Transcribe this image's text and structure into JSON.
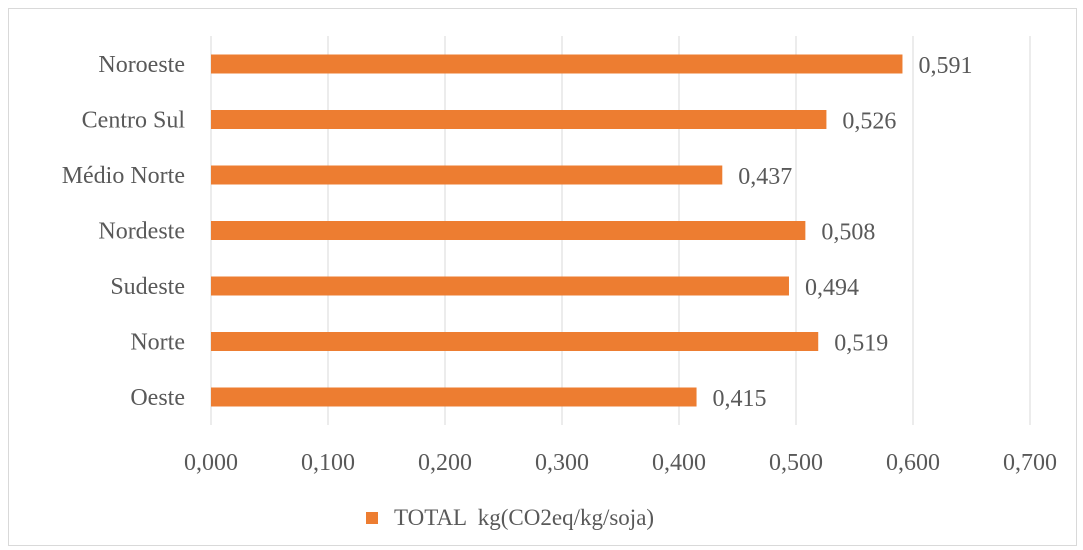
{
  "chart_data": {
    "type": "bar",
    "orientation": "horizontal",
    "categories": [
      "Noroeste",
      "Centro Sul",
      "Médio Norte",
      "Nordeste",
      "Sudeste",
      "Norte",
      "Oeste"
    ],
    "series": [
      {
        "name": "TOTAL  kg(CO2eq/kg/soja)",
        "values": [
          0.591,
          0.526,
          0.437,
          0.508,
          0.494,
          0.519,
          0.415
        ],
        "value_labels": [
          "0,591",
          "0,526",
          "0,437",
          "0,508",
          "0,494",
          "0,519",
          "0,415"
        ]
      }
    ],
    "xlim": [
      0,
      0.7
    ],
    "xticks": [
      0,
      0.1,
      0.2,
      0.3,
      0.4,
      0.5,
      0.6,
      0.7
    ],
    "xtick_labels": [
      "0,000",
      "0,100",
      "0,200",
      "0,300",
      "0,400",
      "0,500",
      "0,600",
      "0,700"
    ],
    "grid": "vertical",
    "legend_position": "bottom",
    "colors": {
      "bar": "#ED7D31",
      "grid": "#d9d9d9",
      "text": "#595959"
    }
  }
}
